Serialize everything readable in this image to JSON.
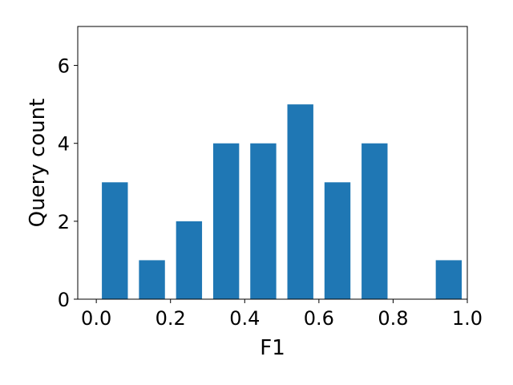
{
  "chart_data": {
    "type": "bar",
    "xlabel": "F1",
    "ylabel": "Query count",
    "xlim": [
      -0.05,
      1.0
    ],
    "ylim": [
      0,
      7
    ],
    "bin_width": 0.1,
    "bar_width": 0.07,
    "x": [
      0.05,
      0.15,
      0.25,
      0.35,
      0.45,
      0.55,
      0.65,
      0.75,
      0.85,
      0.95
    ],
    "values": [
      3,
      1,
      2,
      4,
      4,
      5,
      3,
      4,
      0,
      1
    ],
    "xticks": [
      0.0,
      0.2,
      0.4,
      0.6,
      0.8,
      1.0
    ],
    "xtick_labels": [
      "0.0",
      "0.2",
      "0.4",
      "0.6",
      "0.8",
      "1.0"
    ],
    "yticks": [
      0,
      2,
      4,
      6
    ],
    "ytick_labels": [
      "0",
      "2",
      "4",
      "6"
    ],
    "bar_color": "#1f77b4",
    "grid": false,
    "legend": false
  }
}
